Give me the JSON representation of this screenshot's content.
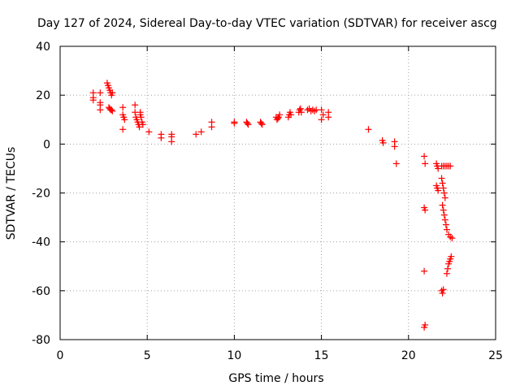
{
  "chart_data": {
    "type": "scatter",
    "title": "Day 127 of 2024, Sidereal Day-to-day VTEC variation (SDTVAR) for receiver ascg",
    "xlabel": "GPS time / hours",
    "ylabel": "SDTVAR / TECUs",
    "xlim": [
      0,
      25
    ],
    "ylim": [
      -80,
      40
    ],
    "xticks": [
      "0",
      "5",
      "10",
      "15",
      "20",
      "25"
    ],
    "yticks": [
      "40",
      "20",
      "0",
      "-20",
      "-40",
      "-60",
      "-80"
    ],
    "xtick_values": [
      0,
      5,
      10,
      15,
      20,
      25
    ],
    "ytick_values": [
      40,
      20,
      0,
      -20,
      -40,
      -60,
      -80
    ],
    "grid": true,
    "marker": "plus",
    "color": "#ff0000",
    "series": [
      {
        "name": "SDTVAR",
        "points": [
          [
            1.9,
            21
          ],
          [
            1.9,
            19
          ],
          [
            1.9,
            18
          ],
          [
            2.3,
            21
          ],
          [
            2.3,
            17
          ],
          [
            2.3,
            16
          ],
          [
            2.3,
            14
          ],
          [
            2.7,
            25
          ],
          [
            2.75,
            24
          ],
          [
            2.8,
            23
          ],
          [
            2.85,
            22
          ],
          [
            2.9,
            21
          ],
          [
            2.95,
            20
          ],
          [
            3.0,
            21
          ],
          [
            2.8,
            15
          ],
          [
            2.85,
            14.5
          ],
          [
            2.9,
            14
          ],
          [
            2.95,
            14
          ],
          [
            3.0,
            13.5
          ],
          [
            3.6,
            15
          ],
          [
            3.6,
            12
          ],
          [
            3.65,
            11
          ],
          [
            3.7,
            10
          ],
          [
            3.6,
            6
          ],
          [
            4.3,
            16
          ],
          [
            4.3,
            13
          ],
          [
            4.35,
            11
          ],
          [
            4.4,
            10
          ],
          [
            4.45,
            9
          ],
          [
            4.5,
            8
          ],
          [
            4.55,
            7
          ],
          [
            4.6,
            12
          ],
          [
            4.65,
            11
          ],
          [
            4.7,
            9
          ],
          [
            4.75,
            8
          ],
          [
            4.6,
            13
          ],
          [
            5.1,
            5
          ],
          [
            5.8,
            4
          ],
          [
            5.8,
            2.5
          ],
          [
            6.4,
            4
          ],
          [
            6.4,
            3
          ],
          [
            6.4,
            1
          ],
          [
            7.8,
            4
          ],
          [
            8.1,
            5
          ],
          [
            8.7,
            9
          ],
          [
            8.7,
            7
          ],
          [
            10.0,
            9
          ],
          [
            10.0,
            8.5
          ],
          [
            10.7,
            9
          ],
          [
            10.75,
            8.5
          ],
          [
            10.8,
            8
          ],
          [
            11.5,
            9
          ],
          [
            11.55,
            8.5
          ],
          [
            11.6,
            8
          ],
          [
            12.4,
            11
          ],
          [
            12.45,
            10
          ],
          [
            12.5,
            10.5
          ],
          [
            12.55,
            11
          ],
          [
            12.6,
            12
          ],
          [
            13.1,
            11
          ],
          [
            13.15,
            12
          ],
          [
            13.2,
            13
          ],
          [
            13.25,
            12
          ],
          [
            13.7,
            13
          ],
          [
            13.75,
            14
          ],
          [
            13.8,
            14.5
          ],
          [
            13.85,
            13
          ],
          [
            14.2,
            14
          ],
          [
            14.3,
            14.5
          ],
          [
            14.4,
            13.5
          ],
          [
            14.5,
            14
          ],
          [
            14.6,
            13.5
          ],
          [
            14.7,
            14
          ],
          [
            15.0,
            14
          ],
          [
            15.1,
            12
          ],
          [
            15.0,
            10
          ],
          [
            15.4,
            13
          ],
          [
            15.4,
            11
          ],
          [
            17.7,
            6
          ],
          [
            18.5,
            1.5
          ],
          [
            18.55,
            0.5
          ],
          [
            19.2,
            1
          ],
          [
            19.2,
            -1
          ],
          [
            19.3,
            -8
          ],
          [
            20.9,
            -5
          ],
          [
            20.95,
            -8
          ],
          [
            20.9,
            -26
          ],
          [
            20.95,
            -27
          ],
          [
            20.9,
            -52
          ],
          [
            20.95,
            -74
          ],
          [
            20.9,
            -75
          ],
          [
            21.6,
            -8
          ],
          [
            21.65,
            -9
          ],
          [
            21.7,
            -10
          ],
          [
            21.6,
            -17
          ],
          [
            21.65,
            -18
          ],
          [
            21.7,
            -19
          ],
          [
            21.9,
            -9
          ],
          [
            22.0,
            -9
          ],
          [
            22.1,
            -9
          ],
          [
            22.2,
            -9
          ],
          [
            22.3,
            -9
          ],
          [
            22.4,
            -9
          ],
          [
            21.9,
            -14
          ],
          [
            21.95,
            -16
          ],
          [
            22.0,
            -18
          ],
          [
            22.05,
            -20
          ],
          [
            22.1,
            -22
          ],
          [
            21.95,
            -25
          ],
          [
            22.0,
            -27
          ],
          [
            22.05,
            -29
          ],
          [
            22.1,
            -31
          ],
          [
            22.15,
            -33
          ],
          [
            22.2,
            -35
          ],
          [
            22.3,
            -37
          ],
          [
            22.4,
            -38
          ],
          [
            22.5,
            -38.5
          ],
          [
            22.2,
            -53
          ],
          [
            22.25,
            -51
          ],
          [
            22.3,
            -49
          ],
          [
            22.35,
            -48
          ],
          [
            22.4,
            -47
          ],
          [
            22.45,
            -46
          ],
          [
            21.9,
            -60
          ],
          [
            21.95,
            -61
          ],
          [
            22.0,
            -59.5
          ]
        ]
      }
    ]
  }
}
